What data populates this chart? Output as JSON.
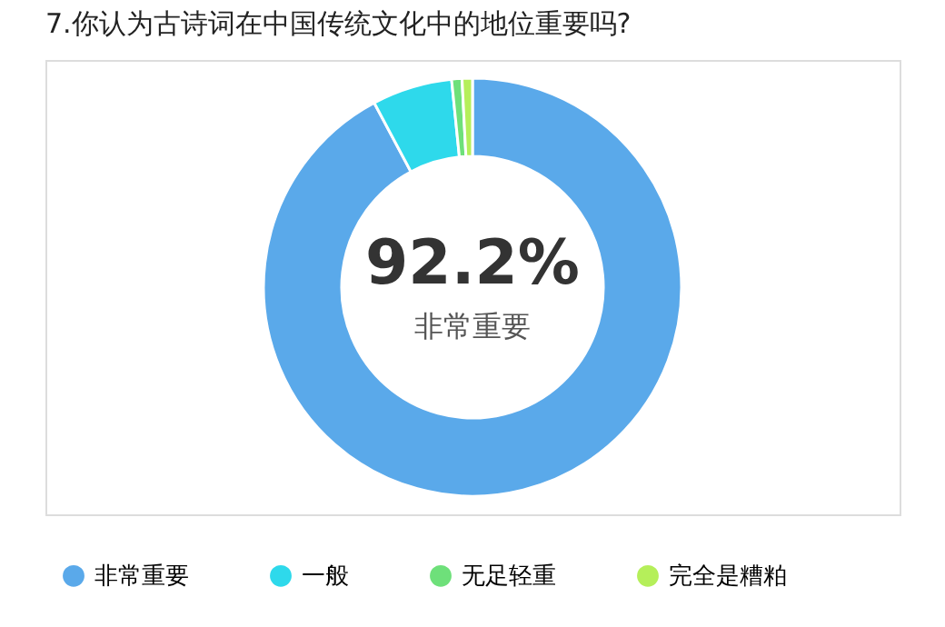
{
  "chart_data": {
    "type": "donut",
    "title": "7.你认为古诗词在中国传统文化中的地位重要吗?",
    "categories": [
      "非常重要",
      "一般",
      "无足轻重",
      "完全是糟粕"
    ],
    "values": [
      92.2,
      6.2,
      0.8,
      0.8
    ],
    "colors": [
      "#5aa9ea",
      "#2ed9eb",
      "#6ee07a",
      "#b5ef5a"
    ],
    "annotations": [
      "92.2%",
      "非常重要"
    ],
    "legend": "bottom"
  }
}
